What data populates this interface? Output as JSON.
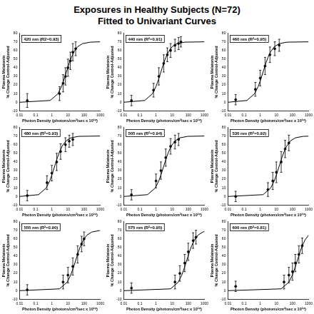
{
  "title": "Exposures in Healthy Subjects (N=72)",
  "subtitle": "Fitted to Univariant Curves",
  "chart_data": [
    {
      "type": "scatter",
      "title": "420 nm (R2=0.93)",
      "x_label": "Photon Density (photons/cm²/sec x 10¹⁰)",
      "y_label": [
        "Plasma Melatonin",
        "% Change Control-Adjusted"
      ],
      "log": "x",
      "grid": false,
      "xlim": [
        0.01,
        1000
      ],
      "xticks": [
        0.01,
        0.1,
        1,
        10,
        100,
        1000
      ],
      "ylim": [
        -10,
        80
      ],
      "yticks": [
        -10,
        0,
        10,
        20,
        30,
        40,
        50,
        60,
        70,
        80
      ],
      "series": [
        {
          "type": "scatter",
          "color": "#000000",
          "marker": "circle",
          "x": [
            0.03,
            3,
            5,
            7,
            10,
            14,
            20,
            30
          ],
          "values": [
            2,
            10,
            22,
            30,
            40,
            48,
            58,
            62
          ],
          "errors": [
            8,
            8,
            10,
            10,
            10,
            10,
            10,
            8
          ]
        },
        {
          "type": "line",
          "color": "#000000",
          "line_style": "solid",
          "x": [
            0.01,
            0.8,
            2.4,
            4,
            5.6,
            8,
            12,
            16,
            24,
            40,
            80,
            240,
            1000
          ],
          "values": [
            0,
            2.1,
            9.9,
            18.3,
            25.9,
            35,
            45.3,
            51.7,
            58.7,
            64.3,
            67.9,
            69.6,
            70
          ]
        }
      ]
    },
    {
      "type": "scatter",
      "title": "440 nm (R²=0.91)",
      "x_label": "Photon Density (photons/cm²/sec x 10¹⁰)",
      "y_label": [
        "Plasma Melatonin",
        "% Change Control-Adjusted"
      ],
      "log": "x",
      "grid": false,
      "xlim": [
        0.01,
        1000
      ],
      "xticks": [
        0.01,
        0.1,
        1,
        10,
        100,
        1000
      ],
      "ylim": [
        -10,
        80
      ],
      "yticks": [
        -10,
        0,
        10,
        20,
        30,
        40,
        50,
        60,
        70,
        80
      ],
      "series": [
        {
          "type": "scatter",
          "color": "#000000",
          "marker": "circle",
          "x": [
            0.03,
            0.7,
            1.5,
            3,
            5,
            8,
            15,
            25,
            35
          ],
          "values": [
            2,
            14,
            30,
            45,
            55,
            60,
            66,
            68,
            70
          ],
          "errors": [
            6,
            8,
            10,
            10,
            8,
            8,
            7,
            7,
            6
          ]
        },
        {
          "type": "line",
          "color": "#000000",
          "line_style": "solid",
          "x": [
            0.01,
            0.2,
            0.6,
            1,
            1.4,
            2,
            3,
            4,
            6,
            10,
            20,
            60,
            1000
          ],
          "values": [
            0,
            2.1,
            9.9,
            18.3,
            25.9,
            35,
            45.3,
            51.7,
            58.7,
            64.3,
            67.9,
            69.6,
            70
          ]
        }
      ]
    },
    {
      "type": "scatter",
      "title": "460 nm (R²=0.95)",
      "x_label": "Photon Density (photons/cm²/sec x 10¹⁰)",
      "y_label": [
        "Plasma Melatonin",
        "% Change Control-Adjusted"
      ],
      "log": "x",
      "grid": false,
      "xlim": [
        0.01,
        1000
      ],
      "xticks": [
        0.01,
        0.1,
        1,
        10,
        100,
        1000
      ],
      "ylim": [
        -10,
        80
      ],
      "yticks": [
        -10,
        0,
        10,
        20,
        30,
        40,
        50,
        60,
        70,
        80
      ],
      "series": [
        {
          "type": "scatter",
          "color": "#000000",
          "marker": "circle",
          "x": [
            0.03,
            0.5,
            1,
            2,
            4,
            8,
            15
          ],
          "values": [
            3,
            15,
            28,
            42,
            55,
            62,
            66
          ],
          "errors": [
            6,
            8,
            9,
            10,
            9,
            8,
            7
          ]
        },
        {
          "type": "line",
          "color": "#000000",
          "line_style": "solid",
          "x": [
            0.01,
            0.15,
            0.45,
            0.75,
            1.05,
            1.5,
            2.25,
            3,
            4.5,
            7.5,
            15,
            45,
            1000
          ],
          "values": [
            0,
            2.1,
            9.9,
            18.3,
            25.9,
            35,
            45.3,
            51.7,
            58.7,
            64.3,
            67.9,
            69.6,
            70
          ]
        }
      ]
    },
    {
      "type": "scatter",
      "title": "480 nm (R²=0.93)",
      "x_label": "Photon Density (photons/cm²/sec x 10¹⁰)",
      "y_label": [
        "Plasma Melatonin",
        "% Change Control-Adjusted"
      ],
      "log": "x",
      "grid": false,
      "xlim": [
        0.01,
        1000
      ],
      "xticks": [
        0.01,
        0.1,
        1,
        10,
        100,
        1000
      ],
      "ylim": [
        -10,
        80
      ],
      "yticks": [
        -10,
        0,
        10,
        20,
        30,
        40,
        50,
        60,
        70,
        80
      ],
      "series": [
        {
          "type": "scatter",
          "color": "#000000",
          "marker": "circle",
          "x": [
            0.03,
            0.5,
            1,
            2,
            3.5,
            7,
            12,
            20
          ],
          "values": [
            1,
            16,
            27,
            40,
            52,
            60,
            64,
            66
          ],
          "errors": [
            6,
            8,
            9,
            10,
            9,
            8,
            7,
            7
          ]
        },
        {
          "type": "line",
          "color": "#000000",
          "line_style": "solid",
          "x": [
            0.01,
            0.15,
            0.45,
            0.75,
            1.05,
            1.5,
            2.25,
            3,
            4.5,
            7.5,
            15,
            45,
            1000
          ],
          "values": [
            0,
            2.1,
            9.9,
            18.3,
            25.9,
            35,
            45.3,
            51.7,
            58.7,
            64.3,
            67.9,
            69.6,
            70
          ]
        }
      ]
    },
    {
      "type": "scatter",
      "title": "505 nm (R²=0.94)",
      "x_label": "Photon Density (photons/cm²/sec x 10¹⁰)",
      "y_label": [
        "Plasma Melatonin",
        "% Change Control-Adjusted"
      ],
      "log": "x",
      "grid": false,
      "xlim": [
        0.01,
        1000
      ],
      "xticks": [
        0.01,
        0.1,
        1,
        10,
        100,
        1000
      ],
      "ylim": [
        -10,
        80
      ],
      "yticks": [
        -10,
        0,
        10,
        20,
        30,
        40,
        50,
        60,
        70,
        80
      ],
      "series": [
        {
          "type": "scatter",
          "color": "#000000",
          "marker": "circle",
          "x": [
            0.03,
            1,
            2,
            4,
            8,
            15,
            25
          ],
          "values": [
            2,
            18,
            30,
            45,
            58,
            63,
            66
          ],
          "errors": [
            6,
            8,
            10,
            10,
            9,
            8,
            7
          ]
        },
        {
          "type": "line",
          "color": "#000000",
          "line_style": "solid",
          "x": [
            0.01,
            0.3,
            0.9,
            1.5,
            2.1,
            3,
            4.5,
            6,
            9,
            15,
            30,
            90,
            1000
          ],
          "values": [
            0,
            2.1,
            9.9,
            18.3,
            25.9,
            35,
            45.3,
            51.7,
            58.7,
            64.3,
            67.9,
            69.6,
            70
          ]
        }
      ]
    },
    {
      "type": "scatter",
      "title": "530 nm (R²=0.92)",
      "x_label": "Photon Density (photons/cm²/sec x 10¹⁰)",
      "y_label": [
        "Plasma Melatonin",
        "% Change Control-Adjusted"
      ],
      "log": "x",
      "grid": false,
      "xlim": [
        0.01,
        1000
      ],
      "xticks": [
        0.01,
        0.1,
        1,
        10,
        100,
        1000
      ],
      "ylim": [
        -10,
        80
      ],
      "yticks": [
        -10,
        0,
        10,
        20,
        30,
        40,
        50,
        60,
        70,
        80
      ],
      "series": [
        {
          "type": "scatter",
          "color": "#000000",
          "marker": "circle",
          "x": [
            0.03,
            3,
            6,
            10,
            20,
            35,
            60
          ],
          "values": [
            0,
            8,
            18,
            28,
            40,
            55,
            62
          ],
          "errors": [
            6,
            8,
            10,
            12,
            12,
            10,
            9
          ]
        },
        {
          "type": "line",
          "color": "#000000",
          "line_style": "solid",
          "x": [
            0.01,
            1.5,
            4.5,
            7.5,
            10.5,
            15,
            22.5,
            30,
            45,
            75,
            150,
            450,
            1000
          ],
          "values": [
            0,
            2.1,
            9.9,
            18.3,
            25.9,
            35,
            45.3,
            51.7,
            58.7,
            64.3,
            67.9,
            69.6,
            69.8
          ]
        }
      ]
    },
    {
      "type": "scatter",
      "title": "555 nm (R²=0.90)",
      "x_label": "Photon Density (photons/cm²/sec x 10¹⁰)",
      "y_label": [
        "Plasma Melatonin",
        "% Change Control-Adjusted"
      ],
      "log": "x",
      "grid": false,
      "xlim": [
        0.01,
        1000
      ],
      "xticks": [
        0.01,
        0.1,
        1,
        10,
        100,
        1000
      ],
      "ylim": [
        -10,
        80
      ],
      "yticks": [
        -10,
        0,
        10,
        20,
        30,
        40,
        50,
        60,
        70,
        80
      ],
      "series": [
        {
          "type": "scatter",
          "color": "#000000",
          "marker": "circle",
          "x": [
            0.03,
            5,
            10,
            20,
            40,
            70,
            100
          ],
          "values": [
            1,
            10,
            18,
            28,
            42,
            54,
            60
          ],
          "errors": [
            6,
            8,
            9,
            10,
            10,
            9,
            8
          ]
        },
        {
          "type": "line",
          "color": "#000000",
          "line_style": "solid",
          "x": [
            0.01,
            3,
            9,
            15,
            21,
            30,
            45,
            60,
            90,
            150,
            300,
            900,
            1000
          ],
          "values": [
            0,
            2.1,
            9.9,
            18.3,
            25.9,
            35,
            45.3,
            51.7,
            58.7,
            64.3,
            67.9,
            69.6,
            69.6
          ]
        }
      ]
    },
    {
      "type": "scatter",
      "title": "575 nm (R²=0.95)",
      "x_label": "Photon Density (photons/cm²/sec x 10¹⁰)",
      "y_label": [
        "Plasma Melatonin",
        "% Change Control-Adjusted"
      ],
      "log": "x",
      "grid": false,
      "xlim": [
        0.01,
        1000
      ],
      "xticks": [
        0.01,
        0.1,
        1,
        10,
        100,
        1000
      ],
      "ylim": [
        -10,
        80
      ],
      "yticks": [
        -10,
        0,
        10,
        20,
        30,
        40,
        50,
        60,
        70,
        80
      ],
      "series": [
        {
          "type": "scatter",
          "color": "#000000",
          "marker": "circle",
          "x": [
            0.03,
            15,
            30,
            60,
            100,
            200,
            300
          ],
          "values": [
            3,
            10,
            20,
            32,
            45,
            58,
            62
          ],
          "errors": [
            6,
            8,
            9,
            10,
            10,
            9,
            8
          ]
        },
        {
          "type": "line",
          "color": "#000000",
          "line_style": "solid",
          "x": [
            0.01,
            8,
            24,
            40,
            56,
            80,
            120,
            160,
            240,
            400,
            800,
            1000
          ],
          "values": [
            0,
            2.1,
            9.9,
            18.3,
            25.9,
            35,
            45.3,
            51.7,
            58.7,
            64.3,
            67.9,
            68.5
          ]
        }
      ]
    },
    {
      "type": "scatter",
      "title": "600 nm (R²=0.81)",
      "x_label": "Photon Density (photons/cm²/sec x 10¹⁰)",
      "y_label": [
        "Plasma Melatonin",
        "% Change Control-Adjusted"
      ],
      "log": "x",
      "grid": false,
      "xlim": [
        0.01,
        1000
      ],
      "xticks": [
        0.01,
        0.1,
        1,
        10,
        100,
        1000
      ],
      "ylim": [
        -10,
        80
      ],
      "yticks": [
        -10,
        0,
        10,
        20,
        30,
        40,
        50,
        60,
        70,
        80
      ],
      "series": [
        {
          "type": "scatter",
          "color": "#000000",
          "marker": "circle",
          "x": [
            0.03,
            30,
            60,
            100,
            150,
            250,
            400
          ],
          "values": [
            5,
            10,
            18,
            22,
            32,
            42,
            52
          ],
          "errors": [
            6,
            8,
            9,
            10,
            10,
            10,
            9
          ]
        },
        {
          "type": "line",
          "color": "#000000",
          "line_style": "solid",
          "x": [
            0.01,
            20,
            60,
            100,
            140,
            200,
            300,
            400,
            600,
            1000
          ],
          "values": [
            0,
            2.1,
            9.9,
            18.3,
            25.9,
            35,
            45.3,
            51.7,
            58.7,
            64.3
          ]
        }
      ]
    }
  ]
}
